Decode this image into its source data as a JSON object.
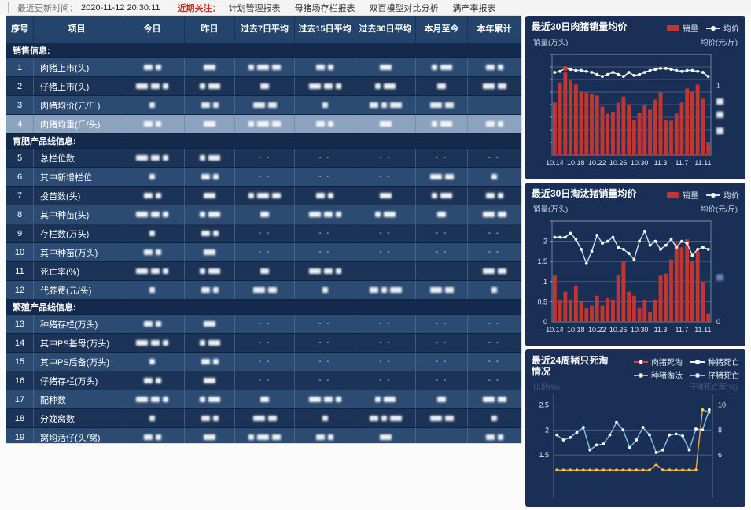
{
  "topbar": {
    "updated_label": "最近更新时间：",
    "updated_time": "2020-11-12 20:30:11",
    "focus_label": "近期关注：",
    "links": [
      "计划管理报表",
      "母猪场存栏报表",
      "双百模型对比分析",
      "满产率报表"
    ]
  },
  "table": {
    "headers": [
      "序号",
      "项目",
      "今日",
      "昨日",
      "过去7日平均",
      "过去15日平均",
      "过去30日平均",
      "本月至今",
      "本年累计"
    ],
    "values_redacted": true,
    "groups": [
      {
        "title": "销售信息:",
        "rows": [
          {
            "no": "1",
            "label": "肉猪上市(头)",
            "shade": "m",
            "cells": [
              "b",
              "b",
              "b",
              "b",
              "b",
              "b",
              "b"
            ]
          },
          {
            "no": "2",
            "label": "仔猪上市(头)",
            "shade": "d",
            "cells": [
              "b",
              "b",
              "b",
              "b",
              "b",
              "b",
              "b"
            ]
          },
          {
            "no": "3",
            "label": "肉猪均价(元/斤)",
            "shade": "m",
            "cells": [
              "b",
              "b",
              "b",
              "b",
              "b",
              "b",
              ""
            ]
          },
          {
            "no": "4",
            "label": "肉猪均重(斤/头)",
            "shade": "sel",
            "selected": true,
            "cells": [
              "b",
              "b",
              "b",
              "b",
              "b",
              "b",
              "b"
            ]
          }
        ]
      },
      {
        "title": "育肥产品线信息:",
        "rows": [
          {
            "no": "5",
            "label": "总栏位数",
            "shade": "d",
            "cells": [
              "b",
              "b",
              "d",
              "d",
              "d",
              "d",
              "d"
            ]
          },
          {
            "no": "6",
            "label": "其中新增栏位",
            "shade": "m",
            "cells": [
              "b",
              "b",
              "d",
              "d",
              "d",
              "b",
              "b"
            ]
          },
          {
            "no": "7",
            "label": "投苗数(头)",
            "shade": "d",
            "cells": [
              "b",
              "b",
              "b",
              "b",
              "b",
              "b",
              "b"
            ]
          },
          {
            "no": "8",
            "label": "其中种苗(头)",
            "shade": "m",
            "cells": [
              "b",
              "b",
              "b",
              "b",
              "b",
              "b",
              "b"
            ]
          },
          {
            "no": "9",
            "label": "存栏数(万头)",
            "shade": "d",
            "cells": [
              "b",
              "b",
              "d",
              "d",
              "d",
              "d",
              "d"
            ]
          },
          {
            "no": "10",
            "label": "其中种苗(万头)",
            "shade": "m",
            "cells": [
              "b",
              "b",
              "d",
              "d",
              "d",
              "d",
              "d"
            ]
          },
          {
            "no": "11",
            "label": "死亡率(%)",
            "shade": "d",
            "cells": [
              "b",
              "b",
              "b",
              "b",
              "",
              "",
              "b"
            ]
          },
          {
            "no": "12",
            "label": "代养费(元/头)",
            "shade": "m",
            "cells": [
              "b",
              "b",
              "b",
              "b",
              "b",
              "b",
              "b"
            ]
          }
        ]
      },
      {
        "title": "繁殖产品线信息:",
        "rows": [
          {
            "no": "13",
            "label": "种猪存栏(万头)",
            "shade": "m",
            "cells": [
              "b",
              "b",
              "d",
              "d",
              "d",
              "d",
              "d"
            ]
          },
          {
            "no": "14",
            "label": "其中PS基母(万头)",
            "shade": "d",
            "cells": [
              "b",
              "b",
              "d",
              "d",
              "d",
              "d",
              "d"
            ]
          },
          {
            "no": "15",
            "label": "其中PS后备(万头)",
            "shade": "m",
            "cells": [
              "b",
              "b",
              "d",
              "d",
              "d",
              "d",
              "d"
            ]
          },
          {
            "no": "16",
            "label": "仔猪存栏(万头)",
            "shade": "d",
            "cells": [
              "b",
              "b",
              "d",
              "d",
              "d",
              "d",
              "d"
            ]
          },
          {
            "no": "17",
            "label": "配种数",
            "shade": "m",
            "cells": [
              "b",
              "b",
              "b",
              "b",
              "b",
              "b",
              "b"
            ]
          },
          {
            "no": "18",
            "label": "分娩窝数",
            "shade": "d",
            "cells": [
              "b",
              "b",
              "b",
              "b",
              "b",
              "b",
              "b"
            ]
          },
          {
            "no": "19",
            "label": "窝均活仔(头/窝)",
            "shade": "m",
            "cells": [
              "b",
              "b",
              "b",
              "b",
              "b",
              "",
              "b"
            ]
          }
        ]
      }
    ]
  },
  "chart_data": [
    {
      "type": "bar",
      "title": "最近30日肉猪销量均价",
      "ylabel_left": "销量(万头)",
      "ylabel_right": "均价(元/斤)",
      "legend": [
        {
          "label": "销量",
          "marker": "rect",
          "color": "#c23632"
        },
        {
          "label": "均价",
          "marker": "linedot",
          "color": "#e6edf4"
        }
      ],
      "x": [
        "10.14",
        "10.15",
        "10.16",
        "10.17",
        "10.18",
        "10.19",
        "10.20",
        "10.21",
        "10.22",
        "10.23",
        "10.24",
        "10.25",
        "10.26",
        "10.27",
        "10.28",
        "10.29",
        "10.30",
        "10.31",
        "11.1",
        "11.2",
        "11.3",
        "11.4",
        "11.5",
        "11.6",
        "11.7",
        "11.8",
        "11.9",
        "11.10",
        "11.11",
        "11.12"
      ],
      "x_tick_idx": [
        0,
        4,
        8,
        12,
        16,
        20,
        24,
        28
      ],
      "axis_values_redacted": true,
      "ylim": [
        0,
        100
      ],
      "grid": [
        12.5,
        25,
        37.5,
        50,
        62.5,
        75,
        87.5,
        100
      ],
      "bars": {
        "name": "销量",
        "color": "#c23632",
        "values": [
          52,
          72,
          82,
          74,
          70,
          63,
          62,
          61,
          59,
          48,
          41,
          43,
          52,
          58,
          50,
          35,
          42,
          49,
          45,
          55,
          62,
          35,
          34,
          41,
          52,
          66,
          63,
          70,
          56,
          12
        ]
      },
      "lines": [
        {
          "name": "均价",
          "color": "#e6edf4",
          "dot": "#ffffff",
          "emphasis": 2,
          "emphasis_color": "#e23a2e",
          "values": [
            82,
            83,
            86,
            85,
            84,
            84,
            83,
            82,
            80,
            78,
            80,
            82,
            80,
            78,
            82,
            79,
            80,
            82,
            84,
            85,
            86,
            86,
            85,
            84,
            83,
            84,
            84,
            83,
            82,
            78
          ]
        }
      ],
      "left_ticks": [],
      "right_ticks": [
        {
          "v": 69,
          "t": "1"
        },
        {
          "v": 53,
          "blur": true
        },
        {
          "v": 40,
          "blur": true
        },
        {
          "v": 24,
          "blur": true
        }
      ]
    },
    {
      "type": "bar",
      "title": "最近30日淘汰猪销量均价",
      "ylabel_left": "销量(万头)",
      "ylabel_right": "均价(元/斤)",
      "legend": [
        {
          "label": "销量",
          "marker": "rect",
          "color": "#c23632"
        },
        {
          "label": "均价",
          "marker": "linedot",
          "color": "#cfe0ef"
        }
      ],
      "x": [
        "10.14",
        "10.15",
        "10.16",
        "10.17",
        "10.18",
        "10.19",
        "10.20",
        "10.21",
        "10.22",
        "10.23",
        "10.24",
        "10.25",
        "10.26",
        "10.27",
        "10.28",
        "10.29",
        "10.30",
        "10.31",
        "11.1",
        "11.2",
        "11.3",
        "11.4",
        "11.5",
        "11.6",
        "11.7",
        "11.8",
        "11.9",
        "11.10",
        "11.11",
        "11.12"
      ],
      "x_tick_idx": [
        0,
        4,
        8,
        12,
        16,
        20,
        24,
        28
      ],
      "ylim": [
        0,
        2.5
      ],
      "grid": [
        0.5,
        1,
        1.5,
        2,
        2.5
      ],
      "bars": {
        "name": "销量",
        "color": "#c23632",
        "values": [
          1.15,
          0.55,
          0.75,
          0.55,
          0.9,
          0.5,
          0.35,
          0.4,
          0.65,
          0.4,
          0.6,
          0.55,
          1.15,
          1.5,
          0.75,
          0.65,
          0.35,
          0.55,
          0.25,
          0.55,
          1.15,
          1.2,
          1.55,
          1.95,
          1.85,
          2.05,
          1.5,
          1.75,
          1.0,
          0.2
        ]
      },
      "lines": [
        {
          "name": "均价",
          "color": "#cfe0ef",
          "dot": "#ffffff",
          "values": [
            2.1,
            2.1,
            2.1,
            2.2,
            2.05,
            1.8,
            1.45,
            1.75,
            2.15,
            1.95,
            2.0,
            2.1,
            1.85,
            1.8,
            1.7,
            1.55,
            2.0,
            2.25,
            1.9,
            2.0,
            1.8,
            1.9,
            2.05,
            1.85,
            2.0,
            1.95,
            1.65,
            1.8,
            1.85,
            1.8
          ]
        }
      ],
      "left_ticks": [
        {
          "v": 0,
          "t": "0"
        },
        {
          "v": 0.5,
          "t": "0.5"
        },
        {
          "v": 1,
          "t": "1"
        },
        {
          "v": 1.5,
          "t": "1.5"
        },
        {
          "v": 2,
          "t": "2"
        }
      ],
      "right_ticks": [
        {
          "v": 0,
          "t": "0"
        },
        {
          "v": 1.1,
          "blur": true,
          "blurcolor": "#6f8fb8"
        }
      ]
    },
    {
      "type": "line",
      "title": "最近24周猪只死淘情况",
      "ylabel_left": "比例(%)",
      "ylabel_right": "仔猪死亡率(%)",
      "axis_labels_faded": true,
      "legend": [
        {
          "label": "肉猪死淘",
          "marker": "linedot",
          "color": "#d6413a"
        },
        {
          "label": "种猪死亡",
          "marker": "linedot",
          "color": "#f2f2f2"
        },
        {
          "label": "种猪淘汰",
          "marker": "linedot",
          "color": "#f0a33c"
        },
        {
          "label": "仔猪死亡",
          "marker": "linedot",
          "color": "#82c4e8"
        }
      ],
      "x": [
        1,
        2,
        3,
        4,
        5,
        6,
        7,
        8,
        9,
        10,
        11,
        12,
        13,
        14,
        15,
        16,
        17,
        18,
        19,
        20,
        21,
        22,
        23,
        24
      ],
      "x_tick_idx": [],
      "x_labels_visible": false,
      "ylim": [
        0.64,
        2.71
      ],
      "grid": [
        1.5,
        2,
        2.5
      ],
      "lines": [
        {
          "name": "肉猪死淘",
          "color": "#d6413a",
          "dot": "#ffffff",
          "values": []
        },
        {
          "name": "种猪死亡",
          "color": "#f2f2f2",
          "dot": "#ffffff",
          "values": []
        },
        {
          "name": "种猪淘汰",
          "color": "#f0a33c",
          "dot": "#f2c94c",
          "values": [
            1.2,
            1.2,
            1.2,
            1.2,
            1.2,
            1.2,
            1.2,
            1.2,
            1.2,
            1.2,
            1.2,
            1.2,
            1.2,
            1.2,
            1.2,
            1.31,
            1.2,
            1.2,
            1.2,
            1.2,
            1.2,
            1.2,
            2.4,
            2.35
          ]
        },
        {
          "name": "仔猪死亡",
          "color": "#82c4e8",
          "dot": "#ffffff",
          "values": [
            1.9,
            1.8,
            1.85,
            1.95,
            2.05,
            1.6,
            1.7,
            1.72,
            1.9,
            2.15,
            2.0,
            1.65,
            1.8,
            2.05,
            1.9,
            1.55,
            1.6,
            1.9,
            1.92,
            1.88,
            1.6,
            2.02,
            2.0,
            2.4
          ]
        }
      ],
      "left_ticks": [
        {
          "v": 2.5,
          "t": "2.5"
        },
        {
          "v": 2,
          "t": "2"
        },
        {
          "v": 1.5,
          "t": "1.5"
        }
      ],
      "right_ticks": [
        {
          "v": 2.5,
          "t": "10"
        },
        {
          "v": 2,
          "t": "8"
        },
        {
          "v": 1.5,
          "t": "6"
        }
      ]
    }
  ]
}
